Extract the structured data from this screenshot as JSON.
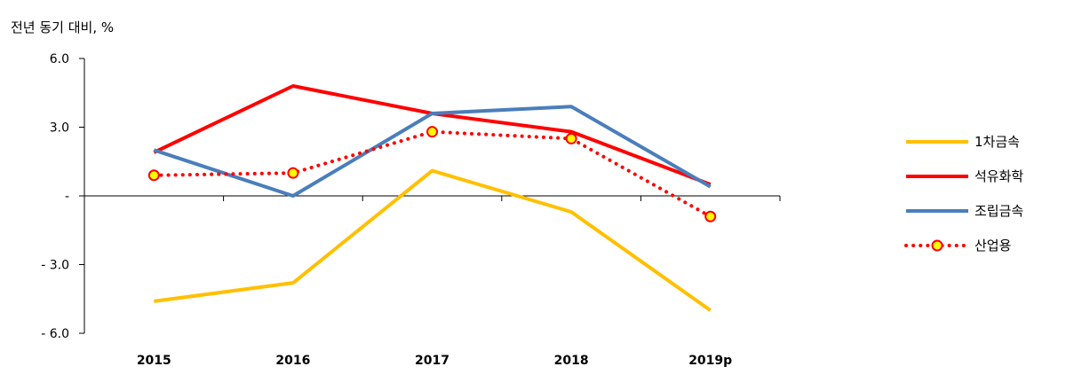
{
  "unit_label": "전년 동기 대비, %",
  "chart_data": {
    "type": "line",
    "title": "",
    "ylabel": "전년 동기 대비, %",
    "xlabel": "",
    "categories": [
      "2015",
      "2016",
      "2017",
      "2018",
      "2019p"
    ],
    "ylim": [
      -6,
      6
    ],
    "yticks": [
      6,
      3,
      0,
      -3,
      -6
    ],
    "ytick_labels": [
      "6.0",
      "3.0",
      "-",
      "- 3.0",
      "- 6.0"
    ],
    "grid": false,
    "legend_position": "right",
    "series": [
      {
        "name": "1차금속",
        "values": [
          -4.6,
          -3.8,
          1.1,
          -0.7,
          -5.0
        ],
        "color": "#FFC000",
        "style": "solid",
        "marker": false
      },
      {
        "name": "석유화학",
        "values": [
          1.9,
          4.8,
          3.6,
          2.8,
          0.5
        ],
        "color": "#FF0000",
        "style": "solid",
        "marker": false
      },
      {
        "name": "조립금속",
        "values": [
          2.0,
          0.0,
          3.6,
          3.9,
          0.4
        ],
        "color": "#4A7EBB",
        "style": "solid",
        "marker": false
      },
      {
        "name": "산업용",
        "values": [
          0.9,
          1.0,
          2.8,
          2.5,
          -0.9
        ],
        "color": "#FF0000",
        "style": "dotted",
        "marker": true,
        "marker_fill": "#FFFF00"
      }
    ]
  }
}
